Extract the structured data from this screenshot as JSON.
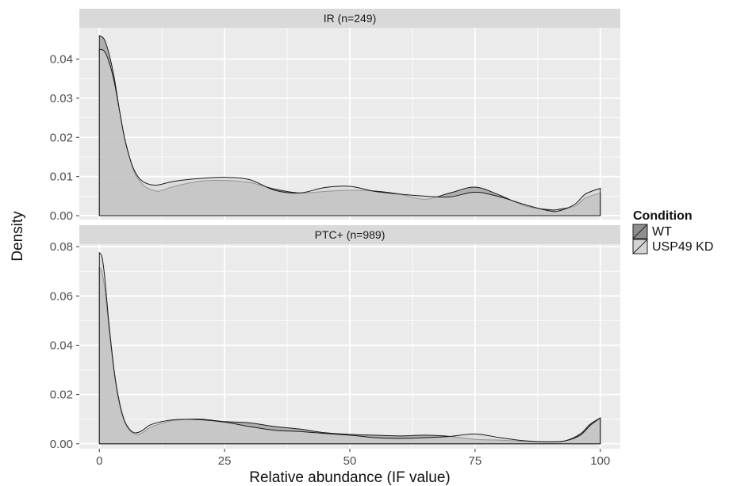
{
  "chart_data": {
    "type": "area",
    "xlabel": "Relative abundance (IF value)",
    "ylabel": "Density",
    "xlim": [
      -4,
      104
    ],
    "x_ticks": [
      0,
      25,
      50,
      75,
      100
    ],
    "grid": true,
    "legend": {
      "title": "Condition",
      "placement": "right",
      "entries": [
        "WT",
        "USP49 KD"
      ]
    },
    "colors": {
      "WT": "#8e8e8e",
      "USP49 KD": "#d4d4d4",
      "panel_bg": "#ebebeb",
      "strip_bg": "#d9d9d9",
      "grid": "#ffffff"
    },
    "panels": [
      {
        "strip": "IR (n=249)",
        "ylim": [
          -0.001,
          0.048
        ],
        "y_ticks": [
          0.0,
          0.01,
          0.02,
          0.03,
          0.04
        ],
        "y_tick_labels": [
          "0.00",
          "0.01",
          "0.02",
          "0.03",
          "0.04"
        ],
        "series": [
          {
            "name": "WT",
            "x": [
              0,
              1,
              2,
              3,
              4,
              5,
              6,
              7,
              8,
              9,
              10,
              11,
              12,
              15,
              20,
              25,
              30,
              35,
              40,
              45,
              50,
              55,
              60,
              65,
              70,
              75,
              80,
              85,
              90,
              92,
              95,
              97,
              100
            ],
            "y": [
              0.046,
              0.045,
              0.041,
              0.035,
              0.027,
              0.02,
              0.015,
              0.011,
              0.009,
              0.0075,
              0.0068,
              0.0064,
              0.0063,
              0.0075,
              0.0088,
              0.009,
              0.0085,
              0.0068,
              0.0058,
              0.0062,
              0.0065,
              0.0063,
              0.0055,
              0.0042,
              0.0058,
              0.0073,
              0.0052,
              0.0025,
              0.0015,
              0.0017,
              0.0025,
              0.0045,
              0.0058
            ]
          },
          {
            "name": "USP49 KD",
            "x": [
              0,
              1,
              2,
              3,
              4,
              5,
              6,
              7,
              8,
              9,
              10,
              11,
              12,
              15,
              20,
              25,
              30,
              35,
              40,
              45,
              50,
              55,
              60,
              65,
              70,
              75,
              80,
              85,
              90,
              92,
              95,
              97,
              100
            ],
            "y": [
              0.0425,
              0.042,
              0.039,
              0.034,
              0.027,
              0.02,
              0.015,
              0.0115,
              0.0095,
              0.0085,
              0.008,
              0.0078,
              0.0079,
              0.0088,
              0.0095,
              0.0098,
              0.0092,
              0.0065,
              0.0058,
              0.0072,
              0.0075,
              0.0062,
              0.0055,
              0.005,
              0.0048,
              0.006,
              0.0048,
              0.0028,
              0.0012,
              0.0013,
              0.003,
              0.0055,
              0.007
            ]
          }
        ]
      },
      {
        "strip": "PTC+ (n=989)",
        "ylim": [
          -0.002,
          0.081
        ],
        "y_ticks": [
          0.0,
          0.02,
          0.04,
          0.06,
          0.08
        ],
        "y_tick_labels": [
          "0.00",
          "0.02",
          "0.04",
          "0.06",
          "0.08"
        ],
        "series": [
          {
            "name": "WT",
            "x": [
              0,
              0.5,
              1,
              1.5,
              2,
              3,
              4,
              5,
              6,
              7,
              8,
              9,
              10,
              12,
              15,
              20,
              25,
              30,
              35,
              40,
              45,
              50,
              55,
              60,
              65,
              70,
              75,
              80,
              85,
              90,
              93,
              96,
              98,
              100
            ],
            "y": [
              0.0715,
              0.07,
              0.064,
              0.055,
              0.045,
              0.028,
              0.016,
              0.009,
              0.0055,
              0.004,
              0.004,
              0.005,
              0.0065,
              0.008,
              0.0095,
              0.01,
              0.009,
              0.0085,
              0.007,
              0.006,
              0.0045,
              0.0038,
              0.0035,
              0.0032,
              0.0035,
              0.003,
              0.0018,
              0.0015,
              0.001,
              0.0008,
              0.0012,
              0.004,
              0.008,
              0.0105
            ]
          },
          {
            "name": "USP49 KD",
            "x": [
              0,
              0.5,
              1,
              1.5,
              2,
              3,
              4,
              5,
              6,
              7,
              8,
              9,
              10,
              12,
              15,
              20,
              25,
              30,
              35,
              40,
              45,
              50,
              55,
              60,
              65,
              70,
              75,
              80,
              85,
              90,
              93,
              96,
              98,
              100
            ],
            "y": [
              0.0775,
              0.076,
              0.069,
              0.058,
              0.047,
              0.029,
              0.017,
              0.0095,
              0.006,
              0.0045,
              0.0048,
              0.006,
              0.0075,
              0.0088,
              0.0098,
              0.0098,
              0.0088,
              0.007,
              0.0055,
              0.005,
              0.0042,
              0.0035,
              0.0025,
              0.0022,
              0.0025,
              0.003,
              0.004,
              0.0025,
              0.0012,
              0.0008,
              0.0012,
              0.0035,
              0.0075,
              0.0105
            ]
          }
        ]
      }
    ]
  }
}
